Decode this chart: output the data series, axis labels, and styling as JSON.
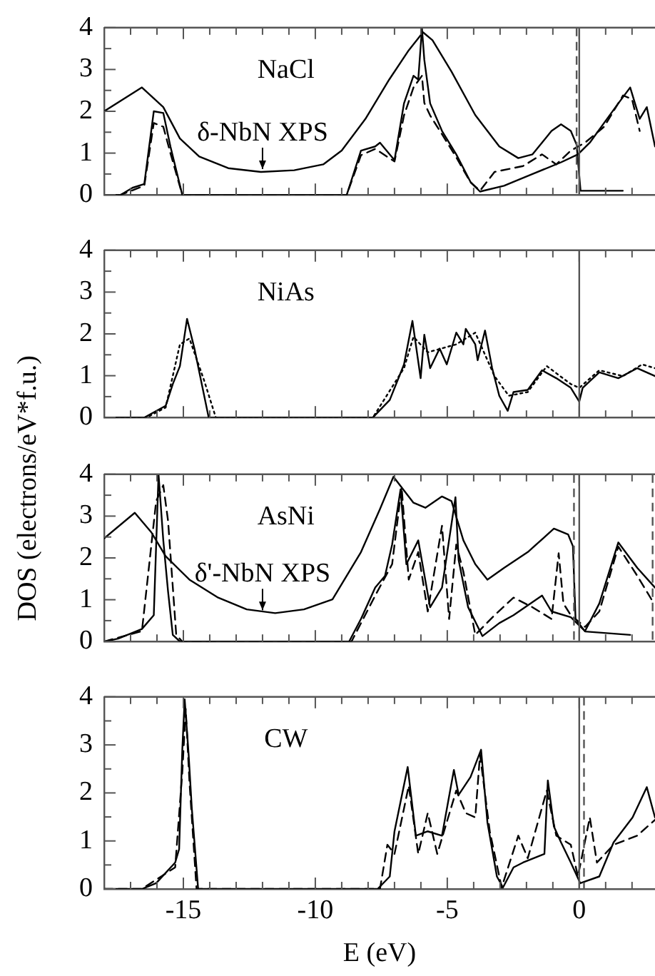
{
  "chart_data": [
    {
      "type": "line",
      "marker": "none",
      "tick_labels": "y",
      "xlim": [
        -18,
        2.87
      ],
      "ylim": [
        0,
        4
      ],
      "xticks": [
        {
          "value": -18,
          "label": null
        },
        {
          "value": -17,
          "label": null
        },
        {
          "value": -16,
          "label": null
        },
        -15,
        {
          "value": -14,
          "label": null
        },
        {
          "value": -13,
          "label": null
        },
        {
          "value": -12,
          "label": null
        },
        {
          "value": -11,
          "label": null
        },
        -10,
        {
          "value": -9,
          "label": null
        },
        {
          "value": -8,
          "label": null
        },
        {
          "value": -7,
          "label": null
        },
        {
          "value": -6,
          "label": null
        },
        -5,
        {
          "value": -4,
          "label": null
        },
        {
          "value": -3,
          "label": null
        },
        {
          "value": -2,
          "label": null
        },
        {
          "value": -1,
          "label": null
        },
        0,
        {
          "value": 1,
          "label": null
        },
        {
          "value": 2,
          "label": null
        }
      ],
      "yticks": [
        0,
        {
          "value": 0.5,
          "label": null
        },
        1,
        {
          "value": 1.5,
          "label": null
        },
        2,
        {
          "value": 2.5,
          "label": null
        },
        3,
        {
          "value": 3.5,
          "label": null
        },
        4
      ],
      "annotations": [
        "NaCl",
        {
          "text": "δ-NbN XPS",
          "x": -12,
          "y": 0.55
        }
      ],
      "ref_lines": [
        {
          "axis": "x",
          "value": 0,
          "color": "#555555",
          "line_style": "solid"
        },
        {
          "axis": "x",
          "value": -0.1,
          "color": "#555555",
          "line_style": "dashed"
        }
      ],
      "series": [
        {
          "color": "#000000",
          "line_style": "solid",
          "x": [
            -18,
            -16.57,
            -15.76,
            -15.13,
            -14.4,
            -13.3,
            -12.06,
            -10.8,
            -9.7,
            -9.0,
            -8.1,
            -7.2,
            -6.46,
            -5.92,
            -5.56,
            -4.84,
            -3.94,
            -3.03,
            -2.31,
            -1.77,
            -1.05,
            -0.69,
            -0.32,
            -0.1,
            0.05,
            1.65
          ],
          "values": [
            2.0,
            2.57,
            2.1,
            1.35,
            0.92,
            0.64,
            0.55,
            0.59,
            0.73,
            1.06,
            1.82,
            2.76,
            3.46,
            3.89,
            3.7,
            2.95,
            1.91,
            1.16,
            0.88,
            0.97,
            1.53,
            1.69,
            1.53,
            1.2,
            0.1,
            0.1
          ]
        },
        {
          "color": "#000000",
          "line_style": "solid",
          "x": [
            -18,
            -17.38,
            -16.93,
            -16.48,
            -16.12,
            -15.76,
            -15.49,
            -15.04,
            -8.81,
            -8.27,
            -7.73,
            -7.55,
            -7.0,
            -6.64,
            -6.28,
            -6.1,
            -5.96,
            -5.87,
            -5.65,
            -5.2,
            -4.66,
            -4.12,
            -3.76,
            -2.85,
            -1.77,
            -0.69,
            -0.05,
            0.4,
            0.94,
            1.48,
            1.93,
            2.29,
            2.56,
            2.87
          ],
          "values": [
            0,
            0,
            0.17,
            0.26,
            2.0,
            1.96,
            1.16,
            0,
            0,
            1.06,
            1.16,
            1.25,
            0.83,
            2.19,
            2.85,
            2.76,
            3.98,
            3.23,
            2.19,
            1.53,
            0.97,
            0.31,
            0.08,
            0.22,
            0.5,
            0.78,
            0.97,
            1.25,
            1.72,
            2.19,
            2.57,
            1.82,
            2.1,
            1.16
          ]
        },
        {
          "color": "#000000",
          "line_style": "dashed",
          "x": [
            -18,
            -17.38,
            -16.48,
            -16.12,
            -15.76,
            -15.49,
            -15.04,
            -8.81,
            -8.27,
            -7.73,
            -7.0,
            -6.64,
            -6.28,
            -5.96,
            -5.87,
            -5.65,
            -5.2,
            -4.66,
            -4.12,
            -3.76,
            -3.21,
            -2.13,
            -1.41,
            -0.87,
            -0.32,
            0.22,
            0.94,
            1.66,
            2.0,
            2.29
          ],
          "values": [
            0,
            0,
            0.22,
            1.72,
            1.63,
            1.0,
            0,
            0,
            0.95,
            1.1,
            0.8,
            1.9,
            2.57,
            2.85,
            2.2,
            1.9,
            1.45,
            0.9,
            0.3,
            0.1,
            0.55,
            0.69,
            0.97,
            0.73,
            1.06,
            1.25,
            1.63,
            2.38,
            2.29,
            1.53
          ]
        }
      ]
    },
    {
      "type": "line",
      "marker": "none",
      "tick_labels": "y",
      "xlim": [
        -18,
        2.87
      ],
      "ylim": [
        0,
        4
      ],
      "ylabel": "DOS (electrons/eV*f.u.)",
      "xticks": [
        {
          "value": -18,
          "label": null
        },
        {
          "value": -17,
          "label": null
        },
        {
          "value": -16,
          "label": null
        },
        -15,
        {
          "value": -14,
          "label": null
        },
        {
          "value": -13,
          "label": null
        },
        {
          "value": -12,
          "label": null
        },
        {
          "value": -11,
          "label": null
        },
        -10,
        {
          "value": -9,
          "label": null
        },
        {
          "value": -8,
          "label": null
        },
        {
          "value": -7,
          "label": null
        },
        {
          "value": -6,
          "label": null
        },
        -5,
        {
          "value": -4,
          "label": null
        },
        {
          "value": -3,
          "label": null
        },
        {
          "value": -2,
          "label": null
        },
        {
          "value": -1,
          "label": null
        },
        0,
        {
          "value": 1,
          "label": null
        },
        {
          "value": 2,
          "label": null
        }
      ],
      "yticks": [
        0,
        {
          "value": 0.5,
          "label": null
        },
        1,
        {
          "value": 1.5,
          "label": null
        },
        2,
        {
          "value": 2.5,
          "label": null
        },
        3,
        {
          "value": 3.5,
          "label": null
        },
        4
      ],
      "annotations": [
        "NiAs"
      ],
      "ref_lines": [
        {
          "axis": "x",
          "value": 0,
          "color": "#555555",
          "line_style": "solid"
        }
      ],
      "series": [
        {
          "color": "#000000",
          "line_style": "solid",
          "x": [
            -18,
            -16.48,
            -15.67,
            -15.4,
            -15.13,
            -14.86,
            -14.58,
            -14.04,
            -7.82,
            -7.18,
            -6.64,
            -6.32,
            -6.01,
            -5.87,
            -5.65,
            -5.29,
            -5.02,
            -4.66,
            -4.39,
            -4.3,
            -3.94,
            -3.85,
            -3.57,
            -3.3,
            -3.03,
            -2.71,
            -2.49,
            -1.95,
            -1.41,
            -0.87,
            -0.32,
            0,
            0.13,
            0.76,
            1.48,
            2.2,
            2.87
          ],
          "values": [
            0,
            0,
            0.28,
            0.8,
            1.23,
            2.36,
            1.65,
            0,
            0,
            0.42,
            1.27,
            2.31,
            0.94,
            1.98,
            1.18,
            1.65,
            1.27,
            2.03,
            1.75,
            2.12,
            1.75,
            1.37,
            2.08,
            1.18,
            0.52,
            0.16,
            0.61,
            0.66,
            1.13,
            0.94,
            0.71,
            0.38,
            0.71,
            1.08,
            0.94,
            1.18,
            0.99
          ]
        },
        {
          "color": "#000000",
          "line_style": "dotted",
          "x": [
            -18,
            -16.39,
            -15.67,
            -15.13,
            -14.77,
            -14.22,
            -13.77,
            -7.82,
            -6.64,
            -6.28,
            -5.74,
            -4.66,
            -3.94,
            -3.21,
            -2.67,
            -1.95,
            -1.23,
            -0.32,
            0,
            0.76,
            1.66,
            2.38,
            2.87
          ],
          "values": [
            0,
            0,
            0.24,
            1.75,
            1.89,
            0.9,
            0,
            0,
            1.18,
            1.93,
            1.56,
            1.75,
            2.03,
            0.99,
            0.52,
            0.61,
            1.23,
            0.8,
            0.71,
            1.13,
            0.99,
            1.27,
            1.18
          ]
        }
      ]
    },
    {
      "type": "line",
      "marker": "none",
      "tick_labels": "y",
      "xlim": [
        -18,
        2.87
      ],
      "ylim": [
        0,
        4
      ],
      "xticks": [
        {
          "value": -18,
          "label": null
        },
        {
          "value": -17,
          "label": null
        },
        {
          "value": -16,
          "label": null
        },
        -15,
        {
          "value": -14,
          "label": null
        },
        {
          "value": -13,
          "label": null
        },
        {
          "value": -12,
          "label": null
        },
        {
          "value": -11,
          "label": null
        },
        -10,
        {
          "value": -9,
          "label": null
        },
        {
          "value": -8,
          "label": null
        },
        {
          "value": -7,
          "label": null
        },
        {
          "value": -6,
          "label": null
        },
        -5,
        {
          "value": -4,
          "label": null
        },
        {
          "value": -3,
          "label": null
        },
        {
          "value": -2,
          "label": null
        },
        {
          "value": -1,
          "label": null
        },
        0,
        {
          "value": 1,
          "label": null
        },
        {
          "value": 2,
          "label": null
        }
      ],
      "yticks": [
        0,
        {
          "value": 0.5,
          "label": null
        },
        1,
        {
          "value": 1.5,
          "label": null
        },
        2,
        {
          "value": 2.5,
          "label": null
        },
        3,
        {
          "value": 3.5,
          "label": null
        },
        4
      ],
      "annotations": [
        "AsNi",
        {
          "text": "δ'-NbN XPS",
          "x": -12,
          "y": 0.68
        }
      ],
      "ref_lines": [
        {
          "axis": "x",
          "value": 0,
          "color": "#555555",
          "line_style": "solid"
        },
        {
          "axis": "x",
          "value": -0.2,
          "color": "#555555",
          "line_style": "dashed"
        },
        {
          "axis": "x",
          "value": 2.78,
          "color": "#555555",
          "line_style": "dashed"
        }
      ],
      "series": [
        {
          "color": "#000000",
          "line_style": "solid",
          "x": [
            -18,
            -16.84,
            -16.21,
            -15.67,
            -14.77,
            -13.68,
            -12.6,
            -11.52,
            -10.43,
            -9.35,
            -8.27,
            -7.55,
            -7.04,
            -6.28,
            -5.83,
            -5.2,
            -4.84,
            -4.39,
            -3.94,
            -3.48,
            -2.85,
            -1.95,
            -0.96,
            -0.42,
            -0.24,
            -0.14,
            0.22,
            1.93
          ],
          "values": [
            2.47,
            3.08,
            2.61,
            2.04,
            1.48,
            1.05,
            0.77,
            0.68,
            0.77,
            1.01,
            2.14,
            3.17,
            3.94,
            3.32,
            3.2,
            3.47,
            3.36,
            2.42,
            1.85,
            1.48,
            1.76,
            2.14,
            2.7,
            2.56,
            2.28,
            0.54,
            0.24,
            0.16
          ]
        },
        {
          "color": "#000000",
          "line_style": "solid",
          "x": [
            -18,
            -17.47,
            -16.57,
            -16.12,
            -15.94,
            -15.76,
            -15.58,
            -15.4,
            -15.13,
            -8.72,
            -8.27,
            -7.73,
            -7.36,
            -7.09,
            -6.77,
            -6.55,
            -6.1,
            -5.65,
            -5.2,
            -4.69,
            -4.57,
            -4.21,
            -3.67,
            -3.03,
            -2.49,
            -1.41,
            -1.05,
            -0.32,
            0.22,
            0.76,
            1.48,
            2.2,
            2.87
          ],
          "values": [
            0,
            0.07,
            0.3,
            0.63,
            4.0,
            2.42,
            1.2,
            0.16,
            0,
            0,
            0.54,
            1.29,
            1.57,
            2.32,
            3.64,
            1.85,
            2.42,
            0.82,
            1.29,
            3.45,
            1.95,
            0.82,
            0.13,
            0.44,
            0.63,
            1.1,
            0.72,
            0.58,
            0.25,
            0.91,
            2.37,
            1.76,
            1.29
          ]
        },
        {
          "color": "#000000",
          "line_style": "dashed",
          "x": [
            -18,
            -16.57,
            -16.03,
            -15.76,
            -15.58,
            -15.27,
            -15.04,
            -8.63,
            -7.73,
            -7.09,
            -6.73,
            -6.46,
            -6.1,
            -5.74,
            -5.2,
            -4.93,
            -4.66,
            -4.39,
            -3.94,
            -3.21,
            -2.49,
            -1.77,
            -1.05,
            -0.78,
            -0.6,
            -0.32,
            0.22,
            0.76,
            1.48,
            2.2,
            2.83
          ],
          "values": [
            0,
            0.25,
            3.36,
            3.74,
            2.89,
            0.16,
            0,
            0,
            1.1,
            1.85,
            3.69,
            1.48,
            2.14,
            0.72,
            2.77,
            0.54,
            2.32,
            1.67,
            0.16,
            0.63,
            1.05,
            0.82,
            0.54,
            2.11,
            0.91,
            0.63,
            0.35,
            0.72,
            2.27,
            1.57,
            0.91
          ]
        }
      ]
    },
    {
      "type": "line",
      "marker": "none",
      "xlim": [
        -18,
        2.87
      ],
      "ylim": [
        0,
        4
      ],
      "xlabel": "E (eV)",
      "xticks": [
        {
          "value": -18,
          "label": null
        },
        {
          "value": -17,
          "label": null
        },
        {
          "value": -16,
          "label": null
        },
        -15,
        {
          "value": -14,
          "label": null
        },
        {
          "value": -13,
          "label": null
        },
        {
          "value": -12,
          "label": null
        },
        {
          "value": -11,
          "label": null
        },
        -10,
        {
          "value": -9,
          "label": null
        },
        {
          "value": -8,
          "label": null
        },
        {
          "value": -7,
          "label": null
        },
        {
          "value": -6,
          "label": null
        },
        -5,
        {
          "value": -4,
          "label": null
        },
        {
          "value": -3,
          "label": null
        },
        {
          "value": -2,
          "label": null
        },
        {
          "value": -1,
          "label": null
        },
        0,
        {
          "value": 1,
          "label": null
        },
        {
          "value": 2,
          "label": null
        }
      ],
      "yticks": [
        0,
        {
          "value": 0.5,
          "label": null
        },
        1,
        {
          "value": 1.5,
          "label": null
        },
        2,
        {
          "value": 2.5,
          "label": null
        },
        3,
        {
          "value": 3.5,
          "label": null
        },
        4
      ],
      "annotations": [
        "CW"
      ],
      "ref_lines": [
        {
          "axis": "x",
          "value": 0,
          "color": "#555555",
          "line_style": "solid"
        },
        {
          "axis": "x",
          "value": 0.18,
          "color": "#555555",
          "line_style": "dashed"
        }
      ],
      "series": [
        {
          "color": "#000000",
          "line_style": "solid",
          "x": [
            -18,
            -16.57,
            -16.03,
            -15.31,
            -15.16,
            -15.04,
            -14.95,
            -14.8,
            -14.68,
            -14.44,
            -7.64,
            -7.18,
            -7.0,
            -6.5,
            -6.19,
            -5.74,
            -5.2,
            -4.75,
            -4.57,
            -4.12,
            -3.72,
            -3.48,
            -3.12,
            -2.89,
            -2.49,
            -2.13,
            -1.32,
            -1.19,
            -0.96,
            -0.69,
            -0.32,
            0.04,
            0.76,
            1.3,
            2.02,
            2.56,
            2.87
          ],
          "values": [
            0,
            0,
            0.12,
            0.55,
            0.83,
            2.9,
            3.95,
            2.8,
            1.68,
            0,
            0,
            0.26,
            1.2,
            2.54,
            1.11,
            1.2,
            1.11,
            2.48,
            1.96,
            2.33,
            2.9,
            1.39,
            0.26,
            0.03,
            0.45,
            0.55,
            0.73,
            2.26,
            1.3,
            0.97,
            0.55,
            0.12,
            0.26,
            0.97,
            1.49,
            2.12,
            1.49
          ]
        },
        {
          "color": "#000000",
          "line_style": "dashed",
          "x": [
            -18,
            -16.57,
            -15.31,
            -15.04,
            -14.91,
            -14.77,
            -14.5,
            -7.55,
            -7.27,
            -7.0,
            -6.46,
            -6.1,
            -5.74,
            -5.38,
            -4.66,
            -4.3,
            -3.94,
            -3.76,
            -3.39,
            -2.94,
            -2.31,
            -1.95,
            -1.23,
            -0.87,
            -0.32,
            -0.05,
            0.4,
            0.67,
            1.3,
            2.2,
            2.87
          ],
          "values": [
            0,
            0,
            0.45,
            2.43,
            3.75,
            2.24,
            0,
            0,
            0.92,
            0.73,
            2.15,
            0.73,
            1.58,
            0.73,
            2.05,
            1.58,
            1.49,
            2.8,
            1.2,
            0.03,
            1.11,
            0.64,
            2.05,
            1.11,
            0.92,
            0.26,
            1.49,
            0.55,
            0.92,
            1.11,
            1.44
          ]
        }
      ]
    }
  ]
}
